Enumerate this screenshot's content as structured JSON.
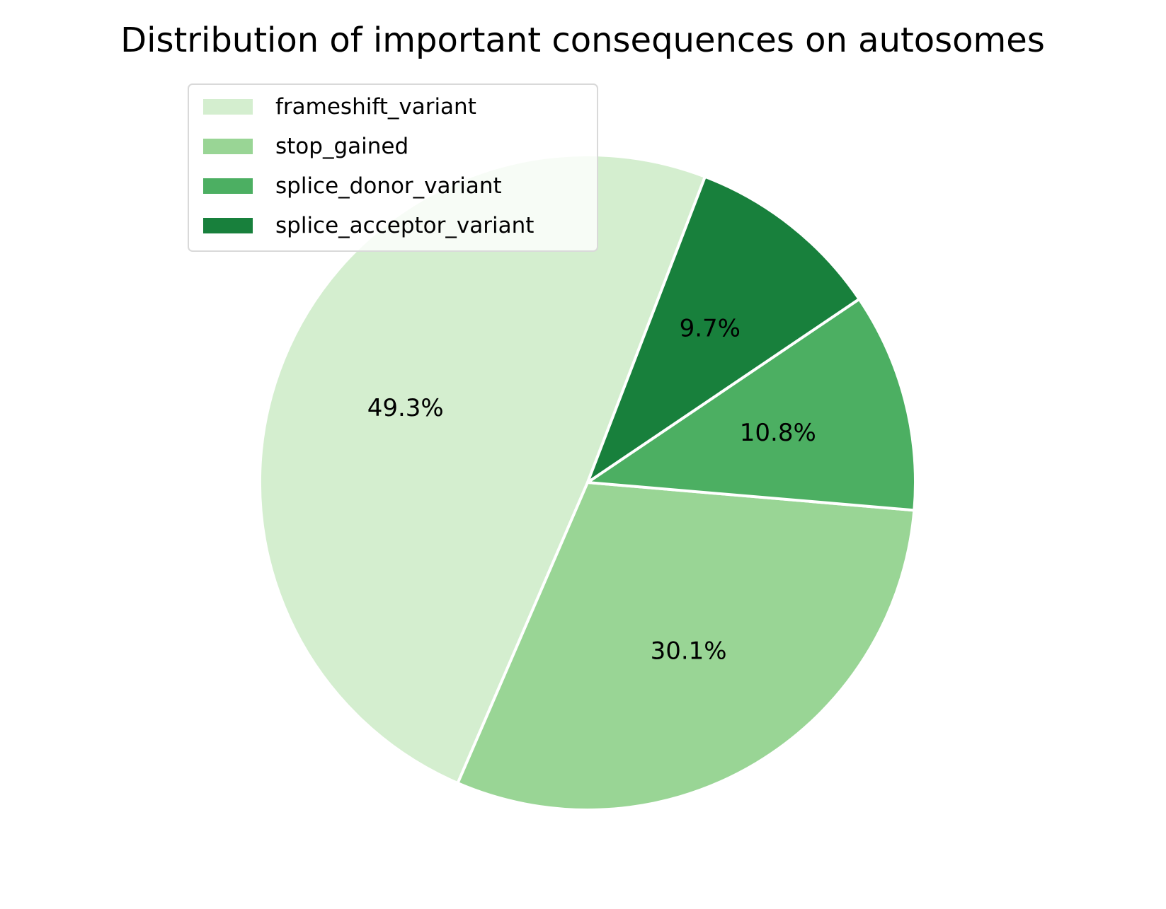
{
  "chart_data": {
    "type": "pie",
    "title": "Distribution of important consequences on autosomes",
    "labels": [
      "frameshift_variant",
      "stop_gained",
      "splice_donor_variant",
      "splice_acceptor_variant"
    ],
    "values": [
      49.3,
      30.1,
      10.8,
      9.7
    ],
    "value_labels": [
      "49.3%",
      "30.1%",
      "10.8%",
      "9.7%"
    ],
    "colors": [
      "#d4eecf",
      "#99d595",
      "#4caf62",
      "#18803c"
    ],
    "wedge_edge_color": "#ffffff",
    "start_angle_deg": 69,
    "direction": "counterclockwise",
    "legend": {
      "placement": "upper-left",
      "entries": [
        "frameshift_variant",
        "stop_gained",
        "splice_donor_variant",
        "splice_acceptor_variant"
      ]
    }
  }
}
